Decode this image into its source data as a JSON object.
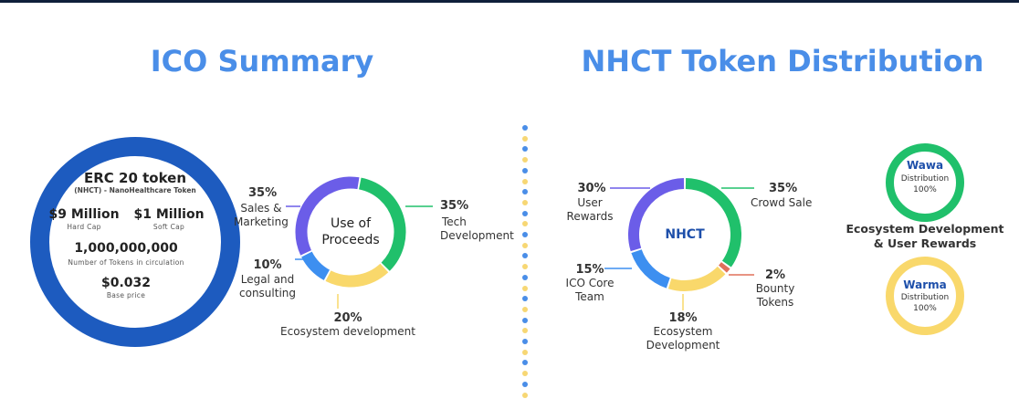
{
  "colors": {
    "title": "#4a8ee8",
    "ico_ring": "#1d5bbf",
    "purple": "#6b5de8",
    "green": "#20c06b",
    "yellow": "#f9d86b",
    "blue": "#3d8ff0",
    "red": "#e0705a",
    "dot_blue": "#4a8ee8",
    "dot_yellow": "#f7d774"
  },
  "left_title": "ICO Summary",
  "right_title": "NHCT Token Distribution",
  "ico": {
    "main": "ERC 20 token",
    "sub": "(NHCT) - NanoHealthcare Token",
    "hard_cap_value": "$9 Million",
    "hard_cap_label": "Hard Cap",
    "soft_cap_value": "$1 Million",
    "soft_cap_label": "Soft Cap",
    "tokens_value": "1,000,000,000",
    "tokens_label": "Number of Tokens in circulation",
    "price_value": "$0.032",
    "price_label": "Base price"
  },
  "proceeds_center": [
    "Use of",
    "Proceeds"
  ],
  "nhct_center": "NHCT",
  "chart_data": [
    {
      "type": "pie",
      "title": "Use of Proceeds",
      "slices": [
        {
          "label": "Tech Development",
          "value": 35
        },
        {
          "label": "Ecosystem development",
          "value": 20
        },
        {
          "label": "Legal and consulting",
          "value": 10
        },
        {
          "label": "Sales & Marketing",
          "value": 35
        }
      ]
    },
    {
      "type": "pie",
      "title": "NHCT",
      "slices": [
        {
          "label": "Crowd Sale",
          "value": 35
        },
        {
          "label": "Bounty Tokens",
          "value": 2
        },
        {
          "label": "Ecosystem Development",
          "value": 18
        },
        {
          "label": "ICO Core Team",
          "value": 15
        },
        {
          "label": "User Rewards",
          "value": 30
        }
      ]
    }
  ],
  "proceeds_labels": {
    "tech": {
      "pct": "35%",
      "lines": [
        "Tech",
        "Development"
      ]
    },
    "eco": {
      "pct": "20%",
      "lines": [
        "Ecosystem development"
      ]
    },
    "legal": {
      "pct": "10%",
      "lines": [
        "Legal and",
        "consulting"
      ]
    },
    "sales": {
      "pct": "35%",
      "lines": [
        "Sales &",
        "Marketing"
      ]
    }
  },
  "nhct_labels": {
    "crowd": {
      "pct": "35%",
      "lines": [
        "Crowd Sale"
      ]
    },
    "bounty": {
      "pct": "2%",
      "lines": [
        "Bounty",
        "Tokens"
      ]
    },
    "eco": {
      "pct": "18%",
      "lines": [
        "Ecosystem",
        "Development"
      ]
    },
    "team": {
      "pct": "15%",
      "lines": [
        "ICO Core",
        "Team"
      ]
    },
    "user": {
      "pct": "30%",
      "lines": [
        "User",
        "Rewards"
      ]
    }
  },
  "wawa": {
    "name": "Wawa",
    "line1": "Distribution",
    "line2": "100%"
  },
  "warma": {
    "name": "Warma",
    "line1": "Distribution",
    "line2": "100%"
  },
  "eco_user_text": [
    "Ecosystem Development",
    "& User Rewards"
  ]
}
